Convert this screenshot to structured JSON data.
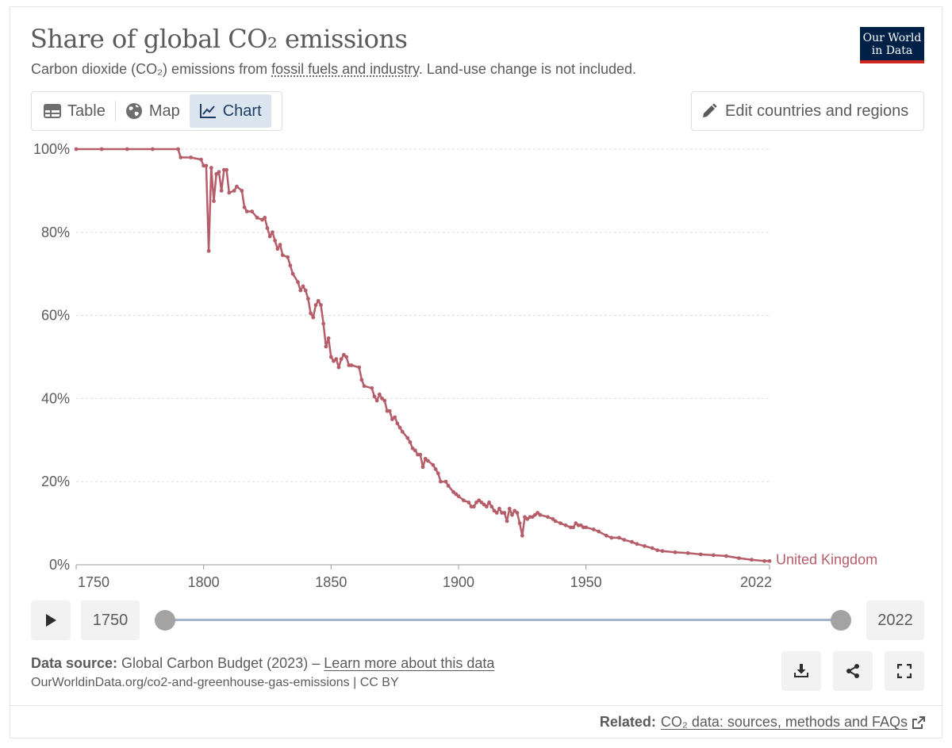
{
  "header": {
    "title": "Share of global CO₂ emissions",
    "subtitle_pre": "Carbon dioxide (CO₂) emissions from ",
    "subtitle_link": "fossil fuels and industry",
    "subtitle_post": ". Land-use change is not included.",
    "logo_line1": "Our World",
    "logo_line2": "in Data"
  },
  "tabs": [
    {
      "label": "Table",
      "icon": "table-icon"
    },
    {
      "label": "Map",
      "icon": "globe-icon"
    },
    {
      "label": "Chart",
      "icon": "line-chart-icon",
      "active": true
    }
  ],
  "edit_button": {
    "label": "Edit countries and regions",
    "icon": "pencil-icon"
  },
  "timeline": {
    "start_year": "1750",
    "end_year": "2022",
    "start_fraction": 0,
    "end_fraction": 1
  },
  "footer": {
    "source_label": "Data source:",
    "source_text": " Global Carbon Budget (2023) – ",
    "source_link": "Learn more about this data",
    "url_line": "OurWorldinData.org/co2-and-greenhouse-gas-emissions | CC BY",
    "related_label": "Related:",
    "related_link": "CO₂ data: sources, methods and FAQs"
  },
  "colors": {
    "series": "#b65d6a",
    "accent": "#002147",
    "logo_red": "#ce261e"
  },
  "chart_data": {
    "type": "line",
    "title": "Share of global CO₂ emissions",
    "xlim": [
      1750,
      2022
    ],
    "ylim": [
      0,
      100
    ],
    "x_ticks": [
      1750,
      1800,
      1850,
      1900,
      1950,
      2022
    ],
    "x_tick_labels": [
      "1750",
      "1800",
      "1850",
      "1900",
      "1950",
      "2022"
    ],
    "y_ticks": [
      0,
      20,
      40,
      60,
      80,
      100
    ],
    "y_tick_labels": [
      "0%",
      "20%",
      "40%",
      "60%",
      "80%",
      "100%"
    ],
    "grid": true,
    "series": [
      {
        "name": "United Kingdom",
        "label": "United Kingdom",
        "points": [
          [
            1750,
            100
          ],
          [
            1760,
            100
          ],
          [
            1770,
            100
          ],
          [
            1780,
            100
          ],
          [
            1790,
            100
          ],
          [
            1791,
            98
          ],
          [
            1795,
            98
          ],
          [
            1799,
            97.5
          ],
          [
            1800,
            96
          ],
          [
            1801,
            96
          ],
          [
            1802,
            75.5
          ],
          [
            1803,
            95.5
          ],
          [
            1804,
            87.5
          ],
          [
            1805,
            94
          ],
          [
            1806,
            94.5
          ],
          [
            1807,
            90
          ],
          [
            1808,
            95
          ],
          [
            1809,
            95
          ],
          [
            1810,
            89.5
          ],
          [
            1812,
            90
          ],
          [
            1813,
            91
          ],
          [
            1815,
            90
          ],
          [
            1816,
            86
          ],
          [
            1817,
            85
          ],
          [
            1819,
            85
          ],
          [
            1821,
            83.5
          ],
          [
            1823,
            83
          ],
          [
            1824,
            83.5
          ],
          [
            1825,
            81
          ],
          [
            1826,
            79
          ],
          [
            1827,
            80
          ],
          [
            1828,
            78
          ],
          [
            1829,
            76
          ],
          [
            1830,
            77
          ],
          [
            1831,
            74.5
          ],
          [
            1833,
            74
          ],
          [
            1834,
            72
          ],
          [
            1835,
            70
          ],
          [
            1837,
            68
          ],
          [
            1838,
            66
          ],
          [
            1839,
            67
          ],
          [
            1840,
            66
          ],
          [
            1841,
            64
          ],
          [
            1842,
            60.5
          ],
          [
            1843,
            59.5
          ],
          [
            1844,
            62.5
          ],
          [
            1845,
            63.5
          ],
          [
            1846,
            62.5
          ],
          [
            1847,
            58
          ],
          [
            1848,
            52.5
          ],
          [
            1849,
            54.5
          ],
          [
            1850,
            50
          ],
          [
            1851,
            49
          ],
          [
            1852,
            49.5
          ],
          [
            1853,
            47.5
          ],
          [
            1854,
            49.5
          ],
          [
            1855,
            50.5
          ],
          [
            1856,
            50
          ],
          [
            1857,
            48
          ],
          [
            1858,
            48
          ],
          [
            1861,
            47.5
          ],
          [
            1862,
            44.5
          ],
          [
            1863,
            43
          ],
          [
            1866,
            42.5
          ],
          [
            1867,
            40.5
          ],
          [
            1868,
            39.5
          ],
          [
            1869,
            41
          ],
          [
            1870,
            40
          ],
          [
            1871,
            39.5
          ],
          [
            1872,
            37
          ],
          [
            1873,
            37
          ],
          [
            1874,
            35
          ],
          [
            1875,
            35.5
          ],
          [
            1876,
            34
          ],
          [
            1877,
            33
          ],
          [
            1878,
            32
          ],
          [
            1880,
            30.5
          ],
          [
            1881,
            29.5
          ],
          [
            1882,
            28
          ],
          [
            1883,
            27.5
          ],
          [
            1884,
            26.5
          ],
          [
            1885,
            26.5
          ],
          [
            1886,
            23.5
          ],
          [
            1887,
            25.5
          ],
          [
            1888,
            25
          ],
          [
            1890,
            24
          ],
          [
            1891,
            23
          ],
          [
            1892,
            22
          ],
          [
            1893,
            20
          ],
          [
            1895,
            20
          ],
          [
            1896,
            19
          ],
          [
            1898,
            17.5
          ],
          [
            1899,
            17
          ],
          [
            1900,
            16.5
          ],
          [
            1902,
            15.5
          ],
          [
            1904,
            15
          ],
          [
            1905,
            14
          ],
          [
            1906,
            14
          ],
          [
            1907,
            15
          ],
          [
            1908,
            15.5
          ],
          [
            1909,
            15
          ],
          [
            1910,
            14.5
          ],
          [
            1911,
            14
          ],
          [
            1912,
            15
          ],
          [
            1913,
            14
          ],
          [
            1914,
            13
          ],
          [
            1915,
            12.5
          ],
          [
            1916,
            13.5
          ],
          [
            1917,
            12.5
          ],
          [
            1918,
            12.5
          ],
          [
            1919,
            10.5
          ],
          [
            1920,
            13.5
          ],
          [
            1921,
            12
          ],
          [
            1922,
            13
          ],
          [
            1923,
            12.5
          ],
          [
            1924,
            10
          ],
          [
            1925,
            7
          ],
          [
            1926,
            11.5
          ],
          [
            1927,
            11
          ],
          [
            1928,
            11.5
          ],
          [
            1929,
            11.5
          ],
          [
            1930,
            12
          ],
          [
            1931,
            12.5
          ],
          [
            1932,
            12
          ],
          [
            1935,
            11.5
          ],
          [
            1937,
            11
          ],
          [
            1938,
            10.5
          ],
          [
            1940,
            10
          ],
          [
            1942,
            9.5
          ],
          [
            1944,
            9
          ],
          [
            1945,
            9
          ],
          [
            1946,
            10
          ],
          [
            1947,
            9.5
          ],
          [
            1948,
            9.5
          ],
          [
            1949,
            9
          ],
          [
            1950,
            9
          ],
          [
            1953,
            8.5
          ],
          [
            1955,
            8
          ],
          [
            1958,
            7
          ],
          [
            1960,
            6.5
          ],
          [
            1963,
            6.5
          ],
          [
            1965,
            6
          ],
          [
            1968,
            5.5
          ],
          [
            1970,
            5
          ],
          [
            1973,
            4.5
          ],
          [
            1976,
            4
          ],
          [
            1978,
            3.5
          ],
          [
            1980,
            3.3
          ],
          [
            1985,
            3
          ],
          [
            1990,
            2.8
          ],
          [
            1995,
            2.5
          ],
          [
            2000,
            2.3
          ],
          [
            2005,
            2.1
          ],
          [
            2010,
            1.6
          ],
          [
            2015,
            1.2
          ],
          [
            2020,
            0.9
          ],
          [
            2022,
            0.9
          ]
        ]
      }
    ]
  }
}
